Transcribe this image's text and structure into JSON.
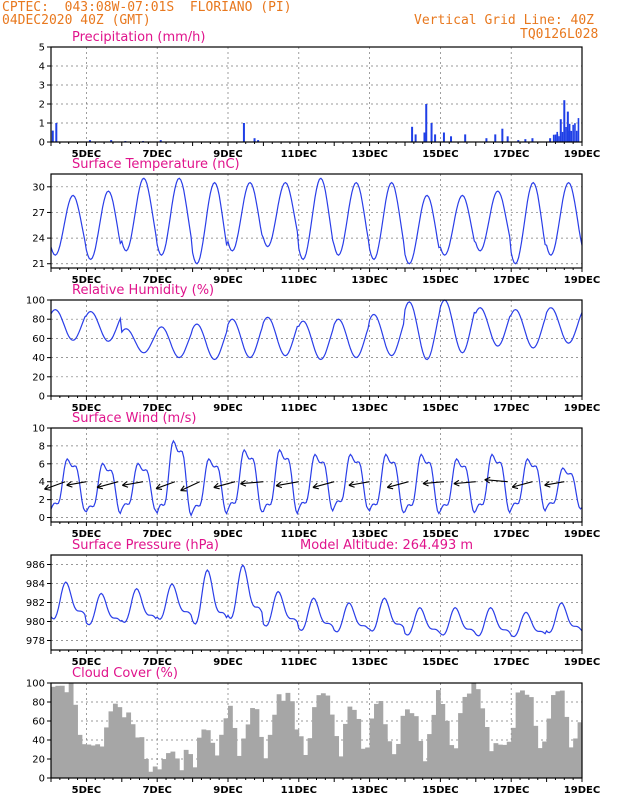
{
  "header": {
    "line1": "CPTEC:  043:08W-07:01S  FLORIANO (PI)",
    "line2": "04DEC2020 40Z (GMT)",
    "grid_note": "Vertical Grid Line: 40Z",
    "code": "TQ0126L028"
  },
  "x_labels": [
    "5DEC",
    "7DEC",
    "9DEC",
    "11DEC",
    "13DEC",
    "15DEC",
    "17DEC",
    "19DEC"
  ],
  "chart_data": [
    {
      "type": "bar",
      "title": "Precipitation (mm/h)",
      "ylim": [
        0,
        5
      ],
      "yticks": [
        0,
        1,
        2,
        3,
        4,
        5
      ],
      "color": "#1f3fe6",
      "events": [
        [
          0.05,
          0.6
        ],
        [
          0.15,
          1.0
        ],
        [
          1.1,
          0.1
        ],
        [
          1.7,
          0.1
        ],
        [
          2.1,
          0.05
        ],
        [
          2.6,
          0.05
        ],
        [
          3.1,
          0.1
        ],
        [
          5.45,
          1.0
        ],
        [
          5.75,
          0.2
        ],
        [
          5.85,
          0.1
        ],
        [
          10.2,
          0.8
        ],
        [
          10.3,
          0.4
        ],
        [
          10.55,
          0.5
        ],
        [
          10.6,
          2.0
        ],
        [
          10.75,
          1.0
        ],
        [
          10.85,
          0.4
        ],
        [
          11.1,
          0.5
        ],
        [
          11.3,
          0.3
        ],
        [
          11.7,
          0.4
        ],
        [
          12.3,
          0.2
        ],
        [
          12.55,
          0.4
        ],
        [
          12.75,
          0.7
        ],
        [
          12.9,
          0.3
        ],
        [
          13.2,
          0.1
        ],
        [
          13.4,
          0.15
        ],
        [
          13.6,
          0.2
        ],
        [
          14.1,
          0.2
        ],
        [
          14.3,
          0.4
        ],
        [
          14.4,
          1.2
        ],
        [
          14.5,
          2.2
        ],
        [
          14.6,
          1.6
        ],
        [
          14.65,
          0.6
        ]
      ]
    },
    {
      "type": "line",
      "title": "Surface Temperature (nC)",
      "ylim": [
        20.5,
        31.5
      ],
      "yticks": [
        21,
        24,
        27,
        30
      ],
      "color": "#2a3ee8",
      "min": [
        22.0,
        21.5,
        22.5,
        22.0,
        21.0,
        22.5,
        23.0,
        21.5,
        22.0,
        21.5,
        21.0,
        22.0,
        22.5,
        21.0,
        22.0
      ],
      "max": [
        29.0,
        29.5,
        31.0,
        31.0,
        30.5,
        30.5,
        30.5,
        31.0,
        30.5,
        30.5,
        29.0,
        29.0,
        29.5,
        30.5,
        30.5
      ]
    },
    {
      "type": "line",
      "title": "Relative Humidity (%)",
      "ylim": [
        0,
        100
      ],
      "yticks": [
        0,
        20,
        40,
        60,
        80,
        100
      ],
      "color": "#2a3ee8",
      "min": [
        58,
        57,
        45,
        40,
        38,
        40,
        42,
        38,
        40,
        42,
        38,
        45,
        52,
        50,
        55
      ],
      "max": [
        90,
        88,
        70,
        72,
        75,
        80,
        82,
        78,
        80,
        85,
        98,
        100,
        92,
        90,
        92
      ]
    },
    {
      "type": "line",
      "title": "Surface Wind (m/s)",
      "ylim": [
        -0.5,
        10
      ],
      "yticks": [
        0,
        2,
        4,
        6,
        8,
        10
      ],
      "color": "#2a3ee8",
      "min": [
        0.8,
        0.5,
        0.8,
        0.3,
        0.5,
        0.7,
        0.5,
        0.8,
        1.0,
        0.6,
        0.5,
        0.6,
        0.6,
        0.8,
        1.0
      ],
      "max": [
        6.5,
        6.0,
        6.0,
        8.5,
        6.5,
        7.5,
        7.5,
        7.0,
        7.0,
        7.0,
        7.0,
        6.5,
        7.0,
        6.5,
        5.5
      ],
      "arrow_y": 4,
      "arrows": [
        {
          "day": 0.4,
          "dir": 250,
          "len": 0.8
        },
        {
          "day": 1.0,
          "dir": 260,
          "len": 0.6
        },
        {
          "day": 1.9,
          "dir": 255,
          "len": 0.8
        },
        {
          "day": 2.6,
          "dir": 260,
          "len": 0.7
        },
        {
          "day": 3.5,
          "dir": 250,
          "len": 0.6
        },
        {
          "day": 4.2,
          "dir": 245,
          "len": 0.7
        },
        {
          "day": 5.2,
          "dir": 255,
          "len": 0.8
        },
        {
          "day": 6.0,
          "dir": 265,
          "len": 0.9
        },
        {
          "day": 7.0,
          "dir": 260,
          "len": 0.9
        },
        {
          "day": 8.0,
          "dir": 255,
          "len": 0.8
        },
        {
          "day": 9.0,
          "dir": 260,
          "len": 0.7
        },
        {
          "day": 10.1,
          "dir": 255,
          "len": 0.8
        },
        {
          "day": 11.1,
          "dir": 265,
          "len": 0.7
        },
        {
          "day": 12.0,
          "dir": 265,
          "len": 0.8
        },
        {
          "day": 12.9,
          "dir": 275,
          "len": 0.9
        },
        {
          "day": 13.6,
          "dir": 255,
          "len": 0.7
        },
        {
          "day": 14.5,
          "dir": 260,
          "len": 0.6
        }
      ]
    },
    {
      "type": "line",
      "title": "Surface Pressure (hPa)",
      "subtitle": "Model Altitude: 264.493 m",
      "ylim": [
        977,
        987
      ],
      "yticks": [
        978,
        980,
        982,
        984,
        986
      ],
      "color": "#2a3ee8",
      "max": [
        984.2,
        983.0,
        983.5,
        984.0,
        985.5,
        986.0,
        983.2,
        982.5,
        982.0,
        982.5,
        981.5,
        981.5,
        981.5,
        981.0,
        982.0
      ],
      "min": [
        979.5,
        979.0,
        979.2,
        979.5,
        978.6,
        979.2,
        978.8,
        978.4,
        978.3,
        978.3,
        978.0,
        978.0,
        977.9,
        977.9,
        978.2
      ]
    },
    {
      "type": "bar",
      "title": "Cloud Cover (%)",
      "ylim": [
        0,
        100
      ],
      "yticks": [
        0,
        20,
        40,
        60,
        80,
        100
      ],
      "color": "#a6a6a6",
      "cover": [
        96,
        95,
        70,
        15,
        70,
        85,
        90,
        82,
        95,
        90,
        72,
        95,
        95,
        92,
        95,
        100
      ],
      "dips": [
        0.9,
        1.3,
        2.8,
        3.6,
        4.0,
        4.6,
        5.3,
        6.0,
        7.1,
        8.1,
        8.8,
        9.6,
        10.5,
        11.3,
        12.4,
        12.8,
        13.8,
        14.7
      ]
    }
  ]
}
